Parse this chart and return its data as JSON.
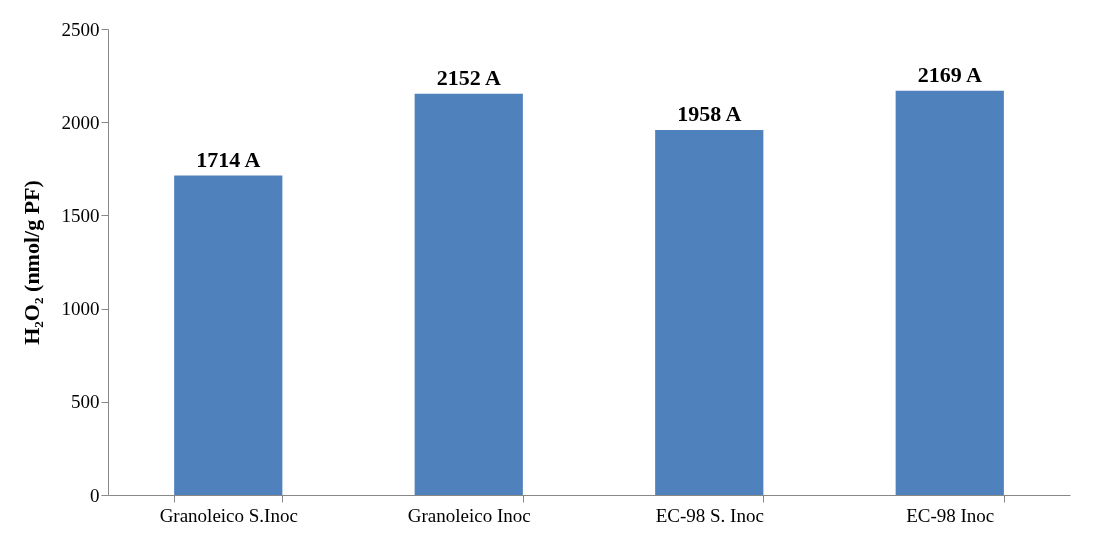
{
  "chart_data": {
    "type": "bar",
    "ylabel": "H₂O₂ (nmol/g PF)",
    "categories": [
      "Granoleico S.Inoc",
      "Granoleico Inoc",
      "EC-98 S. Inoc",
      "EC-98 Inoc"
    ],
    "values": [
      1714,
      2152,
      1958,
      2169
    ],
    "value_labels": [
      "1714  A",
      "2152  A",
      "1958  A",
      "2169  A"
    ],
    "color": "#4f81bd",
    "ylim": [
      0,
      2500
    ],
    "yticks": [
      0,
      500,
      1000,
      1500,
      2000,
      2500
    ],
    "grid": false
  }
}
